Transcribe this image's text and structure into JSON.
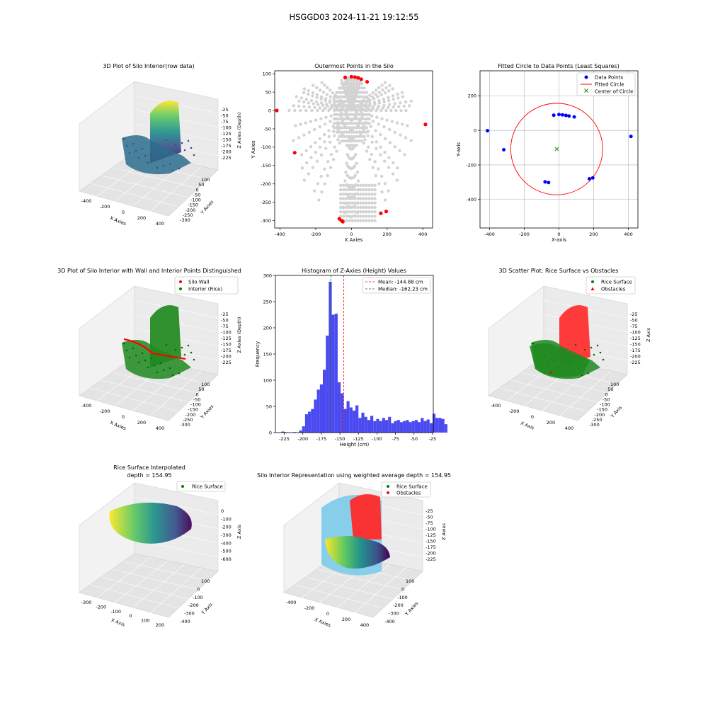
{
  "suptitle": "HSGGD03 2024-11-21 19:12:55",
  "chart_data": [
    {
      "id": "p1",
      "type": "scatter3d",
      "title": "3D Plot of Silo Interior(row data)",
      "xlabel": "X Axies",
      "ylabel": "Y Axies",
      "zlabel": "Z Axies (Depth)",
      "x_ticks": [
        "-400",
        "-200",
        "0",
        "200",
        "400"
      ],
      "y_ticks": [
        "100",
        "50",
        "0",
        "-50",
        "-100",
        "-150",
        "-200",
        "-250",
        "-300"
      ],
      "z_ticks": [
        "-25",
        "-50",
        "-75",
        "-100",
        "-125",
        "-150",
        "-175",
        "-200",
        "-225"
      ],
      "colormap": "viridis"
    },
    {
      "id": "p2",
      "type": "scatter",
      "title": "Outermost Points in the Silo",
      "xlabel": "X Axies",
      "ylabel": "Y Axies",
      "xlim": [
        -430,
        455
      ],
      "ylim": [
        -320,
        108
      ],
      "x_ticks": [
        -400,
        -200,
        0,
        200,
        400
      ],
      "y_ticks": [
        100,
        50,
        0,
        -50,
        -100,
        -150,
        -200,
        -250,
        -300
      ],
      "series": [
        {
          "color": "#d3d3d3",
          "description": "all points (gray)"
        },
        {
          "color": "#ff0000",
          "points": [
            [
              -418,
              0
            ],
            [
              -318,
              -115
            ],
            [
              -68,
              -295
            ],
            [
              -55,
              -300
            ],
            [
              -48,
              -303
            ],
            [
              165,
              -280
            ],
            [
              195,
              -275
            ],
            [
              -35,
              90
            ],
            [
              0,
              92
            ],
            [
              20,
              91
            ],
            [
              38,
              89
            ],
            [
              55,
              85
            ],
            [
              88,
              78
            ],
            [
              415,
              -38
            ]
          ]
        }
      ]
    },
    {
      "id": "p3",
      "type": "scatter",
      "title": "Fitted Circle to Data Points (Least Squares)",
      "xlabel": "X-axis",
      "ylabel": "Y-axis",
      "xlim": [
        -455,
        455
      ],
      "ylim": [
        -565,
        345
      ],
      "x_ticks": [
        -400,
        -200,
        0,
        200,
        400
      ],
      "y_ticks": [
        200,
        0,
        -200,
        -400
      ],
      "grid": true,
      "legend_position": "top-right",
      "legend": [
        "Data Points",
        "Fitted Circle",
        "Center of Circle"
      ],
      "series": [
        {
          "name": "Data Points",
          "color": "#0000ff",
          "points": [
            [
              -412,
              -2
            ],
            [
              -318,
              -112
            ],
            [
              -80,
              -298
            ],
            [
              -60,
              -302
            ],
            [
              -30,
              88
            ],
            [
              0,
              92
            ],
            [
              20,
              90
            ],
            [
              40,
              87
            ],
            [
              58,
              83
            ],
            [
              88,
              78
            ],
            [
              175,
              -280
            ],
            [
              195,
              -275
            ],
            [
              415,
              -35
            ]
          ]
        },
        {
          "name": "Fitted Circle",
          "color": "#ff0000",
          "center": [
            -13,
            -108
          ],
          "radius": 265
        },
        {
          "name": "Center of Circle",
          "color": "#008000",
          "points": [
            [
              -13,
              -108
            ]
          ]
        }
      ]
    },
    {
      "id": "p4",
      "type": "scatter3d",
      "title": "3D Plot of Silo Interior with Wall and Interior Points Distinguished",
      "xlabel": "X Axies",
      "ylabel": "Y Axies",
      "zlabel": "Z Axies (Depth)",
      "x_ticks": [
        "-400",
        "-200",
        "0",
        "200",
        "400"
      ],
      "y_ticks": [
        "100",
        "50",
        "0",
        "-50",
        "-100",
        "-150",
        "-200",
        "-250",
        "-300"
      ],
      "z_ticks": [
        "-25",
        "-50",
        "-75",
        "-100",
        "-125",
        "-150",
        "-175",
        "-200",
        "-225"
      ],
      "legend": [
        "Silo Wall",
        "Interior (Rice)"
      ],
      "legend_colors": [
        "#ff0000",
        "#008000"
      ]
    },
    {
      "id": "p5",
      "type": "bar",
      "title": "Histogram of Z-Axies (Height) Values",
      "xlabel": "Height (cm)",
      "ylabel": "Frequency",
      "xlim": [
        -237,
        -24
      ],
      "ylim": [
        0,
        300
      ],
      "x_ticks": [
        -225,
        -200,
        -175,
        -150,
        -125,
        -100,
        -75,
        -50,
        -25
      ],
      "y_ticks": [
        0,
        50,
        100,
        150,
        200,
        250,
        300
      ],
      "bin_start": -229,
      "bin_width": 4,
      "values": [
        2,
        1,
        0,
        0,
        1,
        0,
        4,
        12,
        35,
        40,
        45,
        63,
        82,
        92,
        120,
        185,
        288,
        225,
        227,
        96,
        75,
        45,
        60,
        48,
        42,
        52,
        28,
        38,
        30,
        24,
        32,
        22,
        26,
        22,
        28,
        24,
        30,
        18,
        22,
        24,
        20,
        22,
        24,
        20,
        22,
        24,
        20,
        28,
        22,
        25,
        18,
        36,
        28,
        28,
        26,
        16
      ],
      "bar_color": "#4a4af0",
      "lines": [
        {
          "label": "Mean: -144.88 cm",
          "x": -144.88,
          "color": "#ff0000"
        },
        {
          "label": "Median: -162.23 cm",
          "x": -162.23,
          "color": "#008000"
        }
      ]
    },
    {
      "id": "p6",
      "type": "scatter3d",
      "title": "3D Scatter Plot: Rice Surface vs Obstacles",
      "xlabel": "X Axis",
      "ylabel": "Y Axis",
      "zlabel": "Z Axis",
      "x_ticks": [
        "-400",
        "-200",
        "0",
        "200",
        "400"
      ],
      "y_ticks": [
        "100",
        "50",
        "0",
        "-50",
        "-100",
        "-150",
        "-200",
        "-250",
        "-300"
      ],
      "z_ticks": [
        "-25",
        "-50",
        "-75",
        "-100",
        "-125",
        "-150",
        "-175",
        "-200",
        "-225"
      ],
      "legend": [
        "Rice Surface",
        "Obstacles"
      ],
      "legend_colors": [
        "#008000",
        "#ff0000"
      ]
    },
    {
      "id": "p7",
      "type": "surface3d",
      "title": "Rice Surface Interpolated",
      "subtitle": "depth = 154.95",
      "xlabel": "X Axis",
      "ylabel": "Y Axis",
      "zlabel": "Z Axis",
      "x_ticks": [
        "-300",
        "-200",
        "-100",
        "0",
        "100",
        "200"
      ],
      "y_ticks": [
        "100",
        "0",
        "-100",
        "-200",
        "-300",
        "-400"
      ],
      "z_ticks": [
        "0",
        "-100",
        "-200",
        "-300",
        "-400",
        "-500",
        "-600"
      ],
      "legend": [
        "Rice Surface"
      ],
      "legend_colors": [
        "#008000"
      ]
    },
    {
      "id": "p8",
      "type": "surface3d",
      "title": "Silo Interior Representation using weighted average depth = 154.95",
      "xlabel": "X Axies",
      "ylabel": "Y Axies",
      "zlabel": "Z Axies",
      "x_ticks": [
        "-400",
        "-200",
        "0",
        "200",
        "400"
      ],
      "y_ticks": [
        "100",
        "0",
        "-100",
        "-200",
        "-300",
        "-400"
      ],
      "z_ticks": [
        "-25",
        "-50",
        "-75",
        "-100",
        "-125",
        "-150",
        "-175",
        "-200",
        "-225"
      ],
      "legend": [
        "Rice Surface",
        "Obstacles"
      ],
      "legend_colors": [
        "#008000",
        "#ff0000"
      ]
    }
  ]
}
